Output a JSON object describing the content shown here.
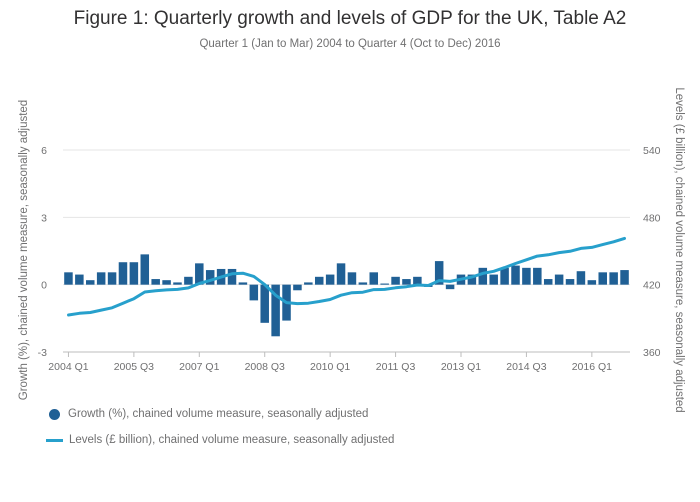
{
  "chart_data": {
    "type": "bar+line",
    "title": "Figure 1: Quarterly growth and levels of GDP for the UK, Table A2",
    "subtitle": "Quarter 1 (Jan to Mar) 2004 to Quarter 4 (Oct to Dec) 2016",
    "x_tick_labels": [
      "2004 Q1",
      "2005 Q3",
      "2007 Q1",
      "2008 Q3",
      "2010 Q1",
      "2011 Q3",
      "2013 Q1",
      "2014 Q3",
      "2016 Q1"
    ],
    "x_start_year": 2004,
    "quarters_count": 52,
    "ylabel_left": "Growth (%), chained volume measure, seasonally adjusted",
    "ylabel_right": "Levels (£ billion), chained volume measure, seasonally adjusted",
    "y_left_ticks": [
      "6",
      "3",
      "0",
      "-3"
    ],
    "y_left_range": [
      -3,
      6
    ],
    "y_right_ticks": [
      "540",
      "480",
      "420",
      "360"
    ],
    "y_right_range": [
      360,
      540
    ],
    "grid": true,
    "legend_position": "bottom-left",
    "series": [
      {
        "name": "Growth (%), chained volume measure, seasonally adjusted",
        "type": "bar",
        "color": "#206095",
        "axis": "left",
        "values": [
          0.55,
          0.45,
          0.2,
          0.55,
          0.55,
          1.0,
          1.0,
          1.35,
          0.25,
          0.2,
          0.1,
          0.35,
          0.95,
          0.65,
          0.7,
          0.7,
          0.1,
          -0.7,
          -1.7,
          -2.3,
          -1.6,
          -0.25,
          0.1,
          0.35,
          0.45,
          0.95,
          0.55,
          0.1,
          0.55,
          0.05,
          0.35,
          0.25,
          0.35,
          -0.1,
          1.05,
          -0.2,
          0.45,
          0.45,
          0.75,
          0.45,
          0.75,
          0.85,
          0.75,
          0.75,
          0.25,
          0.45,
          0.25,
          0.6,
          0.2,
          0.55,
          0.55,
          0.65
        ]
      },
      {
        "name": "Levels (£ billion), chained volume measure, seasonally adjusted",
        "type": "line",
        "color": "#27a0cc",
        "axis": "right",
        "values": [
          393,
          394.5,
          395.2,
          397.3,
          399.4,
          403.5,
          407.5,
          413.5,
          414.5,
          415.3,
          415.8,
          417.1,
          421,
          423.8,
          426.7,
          429.7,
          430.2,
          427.4,
          420.1,
          410.6,
          404,
          403.1,
          403.5,
          405,
          406.8,
          410.6,
          412.8,
          413.3,
          415.6,
          415.8,
          417.2,
          418.2,
          419.7,
          419.3,
          423.6,
          422.9,
          424.9,
          426.8,
          430,
          431.9,
          435.2,
          438.9,
          442.2,
          445.5,
          446.6,
          448.6,
          449.7,
          452.3,
          453.2,
          455.7,
          458.2,
          461.2
        ]
      }
    ]
  }
}
